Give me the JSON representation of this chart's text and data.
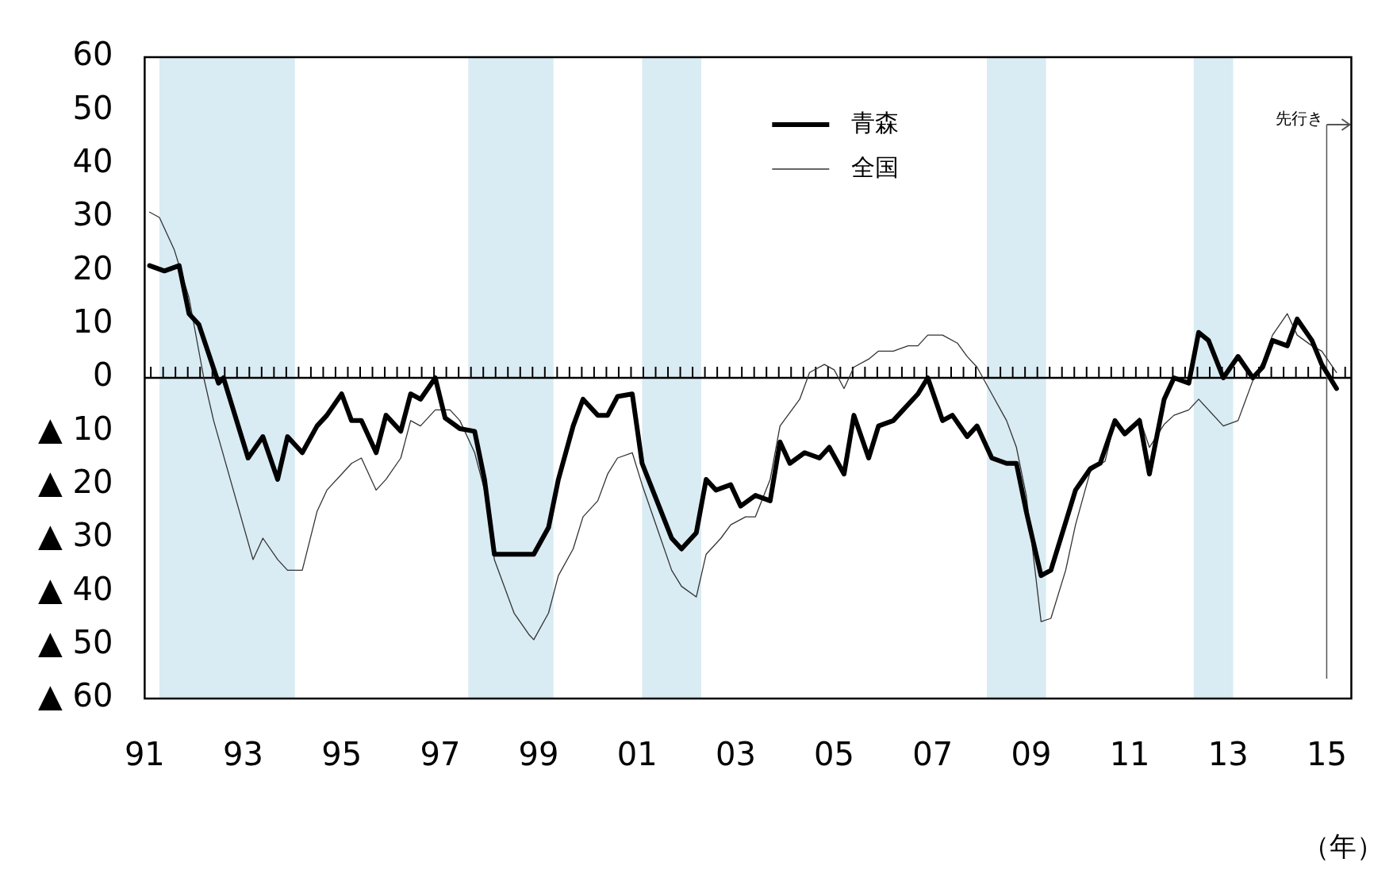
{
  "chart_data": {
    "type": "line",
    "xlabel": "（年）",
    "legend": "top",
    "marker": "none",
    "grid": false,
    "xlim": [
      1991,
      2015.5
    ],
    "xticks": [
      {
        "value": 1991,
        "label": "91"
      },
      {
        "value": 1993,
        "label": "93"
      },
      {
        "value": 1995,
        "label": "95"
      },
      {
        "value": 1997,
        "label": "97"
      },
      {
        "value": 1999,
        "label": "99"
      },
      {
        "value": 2001,
        "label": "01"
      },
      {
        "value": 2003,
        "label": "03"
      },
      {
        "value": 2005,
        "label": "05"
      },
      {
        "value": 2007,
        "label": "07"
      },
      {
        "value": 2009,
        "label": "09"
      },
      {
        "value": 2011,
        "label": "11"
      },
      {
        "value": 2013,
        "label": "13"
      },
      {
        "value": 2015,
        "label": "15"
      }
    ],
    "ylim": [
      -60,
      60
    ],
    "yticks": [
      {
        "value": -60,
        "label": "▲ 60"
      },
      {
        "value": -50,
        "label": "▲ 50"
      },
      {
        "value": -40,
        "label": "▲ 40"
      },
      {
        "value": -30,
        "label": "▲ 30"
      },
      {
        "value": -20,
        "label": "▲ 20"
      },
      {
        "value": -10,
        "label": "▲ 10"
      },
      0,
      10,
      20,
      30,
      40,
      50,
      60
    ],
    "series": [
      {
        "name": "青森",
        "color": "#000000",
        "x": [
          1991.1,
          1991.4,
          1991.7,
          1991.9,
          1992.1,
          1992.5,
          1992.6,
          1993.1,
          1993.4,
          1993.7,
          1993.9,
          1994.2,
          1994.5,
          1994.7,
          1995.0,
          1995.2,
          1995.4,
          1995.7,
          1995.9,
          1996.2,
          1996.4,
          1996.6,
          1996.9,
          1997.1,
          1997.4,
          1997.7,
          1997.9,
          1998.1,
          1998.9,
          1999.2,
          1999.4,
          1999.7,
          1999.9,
          2000.2,
          2000.4,
          2000.6,
          2000.9,
          2001.1,
          2001.4,
          2001.7,
          2001.9,
          2002.2,
          2002.4,
          2002.6,
          2002.9,
          2003.1,
          2003.4,
          2003.7,
          2003.9,
          2004.1,
          2004.4,
          2004.7,
          2004.9,
          2005.2,
          2005.4,
          2005.7,
          2005.9,
          2006.2,
          2006.4,
          2006.7,
          2006.9,
          2007.2,
          2007.4,
          2007.7,
          2007.9,
          2008.2,
          2008.5,
          2008.7,
          2008.9,
          2009.2,
          2009.4,
          2009.7,
          2009.9,
          2010.2,
          2010.4,
          2010.7,
          2010.9,
          2011.2,
          2011.4,
          2011.7,
          2011.9,
          2012.2,
          2012.4,
          2012.6,
          2012.9,
          2013.2,
          2013.5,
          2013.7,
          2013.9,
          2014.2,
          2014.4,
          2014.7,
          2014.9,
          2015.2
        ],
        "values": [
          21,
          20,
          21,
          12,
          10,
          -1,
          0,
          -15,
          -11,
          -19,
          -11,
          -14,
          -9,
          -7,
          -3,
          -8,
          -8,
          -14,
          -7,
          -10,
          -3,
          -4,
          0,
          -7.5,
          -9.5,
          -10,
          -19,
          -33,
          -33,
          -28,
          -19,
          -9,
          -4,
          -7,
          -7,
          -3.5,
          -3,
          -16,
          -23,
          -30,
          -32,
          -29,
          -19,
          -21,
          -20,
          -24,
          -22,
          -23,
          -12,
          -16,
          -14,
          -15,
          -13,
          -18,
          -7,
          -15,
          -9,
          -8,
          -6,
          -3,
          0,
          -8,
          -7,
          -11,
          -9,
          -15,
          -16,
          -16,
          -25,
          -37,
          -36,
          -27,
          -21,
          -17,
          -16,
          -8,
          -10.5,
          -8,
          -18,
          -4,
          0,
          -1,
          8.5,
          7,
          0,
          4,
          0,
          2,
          7,
          6,
          11,
          7,
          2.5,
          -2
        ]
      },
      {
        "name": "全国",
        "color": "#333333",
        "x": [
          1991.1,
          1991.3,
          1991.6,
          1991.9,
          1992.2,
          1992.4,
          1993.2,
          1993.4,
          1993.7,
          1993.9,
          1994.2,
          1994.5,
          1994.7,
          1995.0,
          1995.2,
          1995.4,
          1995.7,
          1995.9,
          1996.2,
          1996.4,
          1996.6,
          1996.9,
          1997.2,
          1997.4,
          1997.7,
          1997.9,
          1998.1,
          1998.5,
          1998.8,
          1998.9,
          1999.2,
          1999.4,
          1999.7,
          1999.9,
          2000.2,
          2000.4,
          2000.6,
          2000.9,
          2001.1,
          2001.4,
          2001.7,
          2001.9,
          2002.2,
          2002.4,
          2002.7,
          2002.9,
          2003.2,
          2003.4,
          2003.7,
          2003.9,
          2004.3,
          2004.5,
          2004.8,
          2005.0,
          2005.2,
          2005.4,
          2005.7,
          2005.9,
          2006.2,
          2006.5,
          2006.7,
          2006.9,
          2007.2,
          2007.5,
          2007.7,
          2007.9,
          2008.2,
          2008.5,
          2008.7,
          2008.9,
          2009.2,
          2009.4,
          2009.7,
          2009.9,
          2010.2,
          2010.5,
          2010.7,
          2010.9,
          2011.2,
          2011.4,
          2011.7,
          2011.9,
          2012.2,
          2012.4,
          2012.6,
          2012.9,
          2013.2,
          2013.5,
          2013.7,
          2013.9,
          2014.2,
          2014.4,
          2014.7,
          2014.9,
          2015.2
        ],
        "values": [
          31,
          30,
          24,
          15,
          0,
          -8,
          -34,
          -30,
          -34,
          -36,
          -36,
          -25,
          -21,
          -18,
          -16,
          -15,
          -21,
          -19,
          -15,
          -8,
          -9,
          -6,
          -6,
          -8,
          -14,
          -21,
          -34,
          -44,
          -48,
          -49,
          -44,
          -37,
          -32,
          -26,
          -23,
          -18,
          -15,
          -14,
          -20,
          -28,
          -36,
          -39,
          -41,
          -33,
          -30,
          -27.5,
          -26,
          -26,
          -19,
          -9,
          -4,
          1,
          2.5,
          1.5,
          -2,
          2,
          3.5,
          5,
          5,
          6,
          6,
          8,
          8,
          6.5,
          4,
          2,
          -3,
          -8,
          -13,
          -22,
          -45.6,
          -45,
          -36,
          -27.5,
          -17.5,
          -15.6,
          -8,
          -10,
          -7.5,
          -13,
          -8.7,
          -7,
          -6,
          -4,
          -6,
          -9,
          -8,
          -0.5,
          3,
          8,
          12,
          8,
          6,
          5,
          1
        ]
      }
    ],
    "bands": [
      {
        "axis": "x",
        "from": 1991.3,
        "to": 1994.05,
        "color": "#d9ebf3"
      },
      {
        "axis": "x",
        "from": 1997.57,
        "to": 1999.3,
        "color": "#d9ebf3"
      },
      {
        "axis": "x",
        "from": 2001.1,
        "to": 2002.3,
        "color": "#d9ebf3"
      },
      {
        "axis": "x",
        "from": 2008.1,
        "to": 2009.3,
        "color": "#d9ebf3"
      },
      {
        "axis": "x",
        "from": 2012.3,
        "to": 2013.1,
        "color": "#d9ebf3"
      }
    ],
    "ref_lines": [
      {
        "axis": "y",
        "value": 0,
        "color": "#000000"
      },
      {
        "axis": "x",
        "value": 2015,
        "label": "先行き",
        "color": "#555555"
      }
    ]
  }
}
